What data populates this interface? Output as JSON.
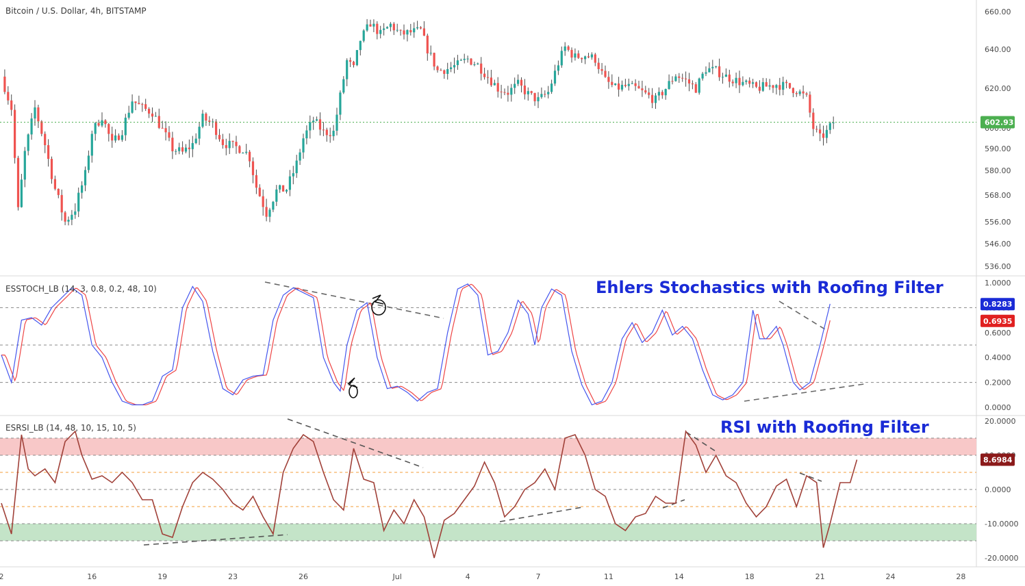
{
  "chart_data": [
    {
      "type": "candlestick",
      "title": "Bitcoin / U.S. Dollar, 4h, BITSTAMP",
      "last_price": 602.93,
      "last_price_label": "602.93",
      "colors": {
        "up": "#26a69a",
        "down": "#ef5350",
        "wick": "#4a4a4a",
        "last": "#4caf50"
      },
      "y_ticks": [
        {
          "v": 660,
          "label": "660.00"
        },
        {
          "v": 640,
          "label": "640.00"
        },
        {
          "v": 620,
          "label": "620.00"
        },
        {
          "v": 600,
          "label": "600.00"
        },
        {
          "v": 590,
          "label": "590.00"
        },
        {
          "v": 580,
          "label": "580.00"
        },
        {
          "v": 568,
          "label": "568.00"
        },
        {
          "v": 556,
          "label": "556.00"
        },
        {
          "v": 546,
          "label": "546.00"
        },
        {
          "v": 536,
          "label": "536.00"
        }
      ],
      "key_points": [
        [
          0,
          626
        ],
        [
          3,
          610
        ],
        [
          5,
          561
        ],
        [
          7,
          588
        ],
        [
          10,
          610
        ],
        [
          13,
          592
        ],
        [
          16,
          571
        ],
        [
          19,
          556
        ],
        [
          22,
          562
        ],
        [
          25,
          578
        ],
        [
          27,
          598
        ],
        [
          30,
          606
        ],
        [
          33,
          592
        ],
        [
          36,
          599
        ],
        [
          39,
          614
        ],
        [
          42,
          610
        ],
        [
          45,
          608
        ],
        [
          48,
          599
        ],
        [
          51,
          590
        ],
        [
          54,
          588
        ],
        [
          57,
          592
        ],
        [
          60,
          605
        ],
        [
          63,
          602
        ],
        [
          66,
          593
        ],
        [
          69,
          591
        ],
        [
          72,
          590
        ],
        [
          74,
          586
        ],
        [
          76,
          572
        ],
        [
          79,
          560
        ],
        [
          82,
          570
        ],
        [
          85,
          571
        ],
        [
          88,
          583
        ],
        [
          90,
          595
        ],
        [
          93,
          604
        ],
        [
          96,
          598
        ],
        [
          99,
          598
        ],
        [
          101,
          616
        ],
        [
          103,
          634
        ],
        [
          105,
          630
        ],
        [
          107,
          645
        ],
        [
          110,
          654
        ],
        [
          113,
          648
        ],
        [
          116,
          653
        ],
        [
          119,
          648
        ],
        [
          122,
          649
        ],
        [
          125,
          650
        ],
        [
          127,
          640
        ],
        [
          130,
          629
        ],
        [
          133,
          630
        ],
        [
          136,
          632
        ],
        [
          139,
          635
        ],
        [
          142,
          632
        ],
        [
          145,
          626
        ],
        [
          148,
          620
        ],
        [
          151,
          618
        ],
        [
          154,
          622
        ],
        [
          157,
          617
        ],
        [
          160,
          614
        ],
        [
          163,
          618
        ],
        [
          166,
          633
        ],
        [
          168,
          641
        ],
        [
          171,
          636
        ],
        [
          174,
          637
        ],
        [
          177,
          635
        ],
        [
          180,
          624
        ],
        [
          183,
          620
        ],
        [
          186,
          621
        ],
        [
          189,
          620
        ],
        [
          192,
          617
        ],
        [
          195,
          614
        ],
        [
          198,
          620
        ],
        [
          201,
          627
        ],
        [
          204,
          624
        ],
        [
          207,
          620
        ],
        [
          210,
          630
        ],
        [
          213,
          629
        ],
        [
          216,
          626
        ],
        [
          219,
          624
        ],
        [
          222,
          622
        ],
        [
          225,
          620
        ],
        [
          228,
          621
        ],
        [
          231,
          622
        ],
        [
          234,
          621
        ],
        [
          237,
          619
        ],
        [
          240,
          615
        ],
        [
          242,
          600
        ],
        [
          244,
          595
        ],
        [
          246,
          598
        ],
        [
          248,
          603
        ]
      ]
    },
    {
      "type": "line",
      "title": "ESSTOCH_LB (14, 3, 0.8, 0.2, 48, 10)",
      "annotation": "Ehlers Stochastics with Roofing Filter",
      "series": [
        {
          "color": "#4455ee",
          "last": 0.8283,
          "last_label": "0.8283"
        },
        {
          "color": "#ee4444",
          "last": 0.6935,
          "last_label": "0.6935"
        }
      ],
      "y_ticks": [
        {
          "v": 1.0,
          "label": "1.0000"
        },
        {
          "v": 0.8,
          "label": "0.8000"
        },
        {
          "v": 0.6,
          "label": "0.6000"
        },
        {
          "v": 0.4,
          "label": "0.4000"
        },
        {
          "v": 0.2,
          "label": "0.2000"
        },
        {
          "v": 0.0,
          "label": "0.0000"
        }
      ],
      "levels": [
        0.8,
        0.5,
        0.2
      ],
      "key_points": [
        [
          0,
          0.42
        ],
        [
          3,
          0.2
        ],
        [
          6,
          0.7
        ],
        [
          9,
          0.72
        ],
        [
          12,
          0.66
        ],
        [
          15,
          0.8
        ],
        [
          18,
          0.88
        ],
        [
          21,
          0.96
        ],
        [
          24,
          0.9
        ],
        [
          27,
          0.5
        ],
        [
          30,
          0.4
        ],
        [
          33,
          0.2
        ],
        [
          36,
          0.05
        ],
        [
          39,
          0.02
        ],
        [
          42,
          0.02
        ],
        [
          45,
          0.05
        ],
        [
          48,
          0.25
        ],
        [
          51,
          0.3
        ],
        [
          54,
          0.8
        ],
        [
          57,
          0.97
        ],
        [
          60,
          0.85
        ],
        [
          63,
          0.45
        ],
        [
          66,
          0.15
        ],
        [
          69,
          0.1
        ],
        [
          72,
          0.22
        ],
        [
          75,
          0.25
        ],
        [
          78,
          0.26
        ],
        [
          81,
          0.7
        ],
        [
          84,
          0.9
        ],
        [
          87,
          0.96
        ],
        [
          90,
          0.92
        ],
        [
          93,
          0.88
        ],
        [
          96,
          0.4
        ],
        [
          99,
          0.2
        ],
        [
          101,
          0.13
        ],
        [
          103,
          0.5
        ],
        [
          106,
          0.78
        ],
        [
          109,
          0.84
        ],
        [
          112,
          0.4
        ],
        [
          115,
          0.15
        ],
        [
          118,
          0.17
        ],
        [
          121,
          0.12
        ],
        [
          124,
          0.05
        ],
        [
          127,
          0.12
        ],
        [
          130,
          0.15
        ],
        [
          133,
          0.6
        ],
        [
          136,
          0.95
        ],
        [
          139,
          0.99
        ],
        [
          142,
          0.9
        ],
        [
          145,
          0.42
        ],
        [
          148,
          0.45
        ],
        [
          151,
          0.6
        ],
        [
          154,
          0.86
        ],
        [
          157,
          0.75
        ],
        [
          159,
          0.5
        ],
        [
          161,
          0.8
        ],
        [
          164,
          0.95
        ],
        [
          167,
          0.9
        ],
        [
          170,
          0.45
        ],
        [
          173,
          0.18
        ],
        [
          176,
          0.02
        ],
        [
          179,
          0.05
        ],
        [
          182,
          0.2
        ],
        [
          185,
          0.55
        ],
        [
          188,
          0.68
        ],
        [
          191,
          0.52
        ],
        [
          194,
          0.6
        ],
        [
          197,
          0.78
        ],
        [
          200,
          0.58
        ],
        [
          203,
          0.65
        ],
        [
          206,
          0.55
        ],
        [
          209,
          0.3
        ],
        [
          212,
          0.1
        ],
        [
          215,
          0.06
        ],
        [
          218,
          0.1
        ],
        [
          221,
          0.2
        ],
        [
          224,
          0.78
        ],
        [
          226,
          0.55
        ],
        [
          228,
          0.55
        ],
        [
          231,
          0.65
        ],
        [
          233,
          0.5
        ],
        [
          236,
          0.2
        ],
        [
          238,
          0.14
        ],
        [
          241,
          0.2
        ],
        [
          244,
          0.5
        ],
        [
          247,
          0.83
        ]
      ]
    },
    {
      "type": "line",
      "title": "ESRSI_LB (14, 48, 10, 15, 10, 5)",
      "annotation": "RSI with Roofing Filter",
      "series": [
        {
          "color": "#a04038",
          "last": 8.6984,
          "last_label": "8.6984"
        }
      ],
      "y_ticks": [
        {
          "v": 20,
          "label": "20.0000"
        },
        {
          "v": 10,
          "label": "10.0000"
        },
        {
          "v": 0,
          "label": "0.0000"
        },
        {
          "v": -10,
          "label": "-10.0000"
        },
        {
          "v": -20,
          "label": "-20.0000"
        }
      ],
      "overbought_zone": [
        10,
        15
      ],
      "oversold_zone": [
        -15,
        -10
      ],
      "zone_colors": {
        "overbought": "#f8c8c8",
        "oversold": "#c4e4c8"
      },
      "levels_gray": [
        15,
        10,
        0,
        -10,
        -15
      ],
      "levels_orange": [
        5,
        -5
      ],
      "key_points": [
        [
          0,
          -4
        ],
        [
          3,
          -13
        ],
        [
          6,
          16
        ],
        [
          8,
          6
        ],
        [
          10,
          4
        ],
        [
          13,
          6
        ],
        [
          16,
          2
        ],
        [
          19,
          14
        ],
        [
          22,
          17
        ],
        [
          24,
          10
        ],
        [
          27,
          3
        ],
        [
          30,
          4
        ],
        [
          33,
          2
        ],
        [
          36,
          5
        ],
        [
          39,
          2
        ],
        [
          42,
          -3
        ],
        [
          45,
          -3
        ],
        [
          48,
          -13
        ],
        [
          51,
          -14
        ],
        [
          54,
          -5
        ],
        [
          57,
          2
        ],
        [
          60,
          5
        ],
        [
          63,
          3
        ],
        [
          66,
          0
        ],
        [
          69,
          -4
        ],
        [
          72,
          -6
        ],
        [
          75,
          -2
        ],
        [
          78,
          -8
        ],
        [
          81,
          -13
        ],
        [
          84,
          5
        ],
        [
          87,
          12
        ],
        [
          90,
          16
        ],
        [
          93,
          14
        ],
        [
          96,
          5
        ],
        [
          99,
          -3
        ],
        [
          102,
          -6
        ],
        [
          105,
          12
        ],
        [
          108,
          3
        ],
        [
          111,
          2
        ],
        [
          114,
          -12
        ],
        [
          117,
          -6
        ],
        [
          120,
          -10
        ],
        [
          123,
          -3
        ],
        [
          126,
          -8
        ],
        [
          129,
          -20
        ],
        [
          132,
          -9
        ],
        [
          135,
          -7
        ],
        [
          138,
          -3
        ],
        [
          141,
          1
        ],
        [
          144,
          8
        ],
        [
          147,
          2
        ],
        [
          150,
          -8
        ],
        [
          153,
          -5
        ],
        [
          156,
          0
        ],
        [
          159,
          2
        ],
        [
          162,
          6
        ],
        [
          165,
          0
        ],
        [
          168,
          15
        ],
        [
          171,
          16
        ],
        [
          174,
          10
        ],
        [
          177,
          0
        ],
        [
          180,
          -2
        ],
        [
          183,
          -10
        ],
        [
          186,
          -12
        ],
        [
          189,
          -8
        ],
        [
          192,
          -7
        ],
        [
          195,
          -2
        ],
        [
          198,
          -4
        ],
        [
          201,
          -4
        ],
        [
          204,
          17
        ],
        [
          207,
          13
        ],
        [
          210,
          5
        ],
        [
          213,
          10
        ],
        [
          216,
          4
        ],
        [
          219,
          2
        ],
        [
          222,
          -4
        ],
        [
          225,
          -8
        ],
        [
          228,
          -5
        ],
        [
          231,
          1
        ],
        [
          234,
          3
        ],
        [
          237,
          -5
        ],
        [
          240,
          4
        ],
        [
          243,
          2
        ],
        [
          245,
          -17
        ],
        [
          247,
          -10
        ],
        [
          250,
          2
        ],
        [
          253,
          2
        ],
        [
          255,
          8.7
        ]
      ]
    }
  ],
  "x_axis": {
    "labels": [
      {
        "t": 0,
        "label": "2"
      },
      {
        "t": 27,
        "label": "16"
      },
      {
        "t": 48,
        "label": "19"
      },
      {
        "t": 69,
        "label": "23"
      },
      {
        "t": 90,
        "label": "26"
      },
      {
        "t": 118,
        "label": "Jul"
      },
      {
        "t": 139,
        "label": "4"
      },
      {
        "t": 160,
        "label": "7"
      },
      {
        "t": 181,
        "label": "11"
      },
      {
        "t": 202,
        "label": "14"
      },
      {
        "t": 223,
        "label": "18"
      },
      {
        "t": 244,
        "label": "21"
      },
      {
        "t": 265,
        "label": "24"
      },
      {
        "t": 286,
        "label": "28"
      }
    ]
  }
}
